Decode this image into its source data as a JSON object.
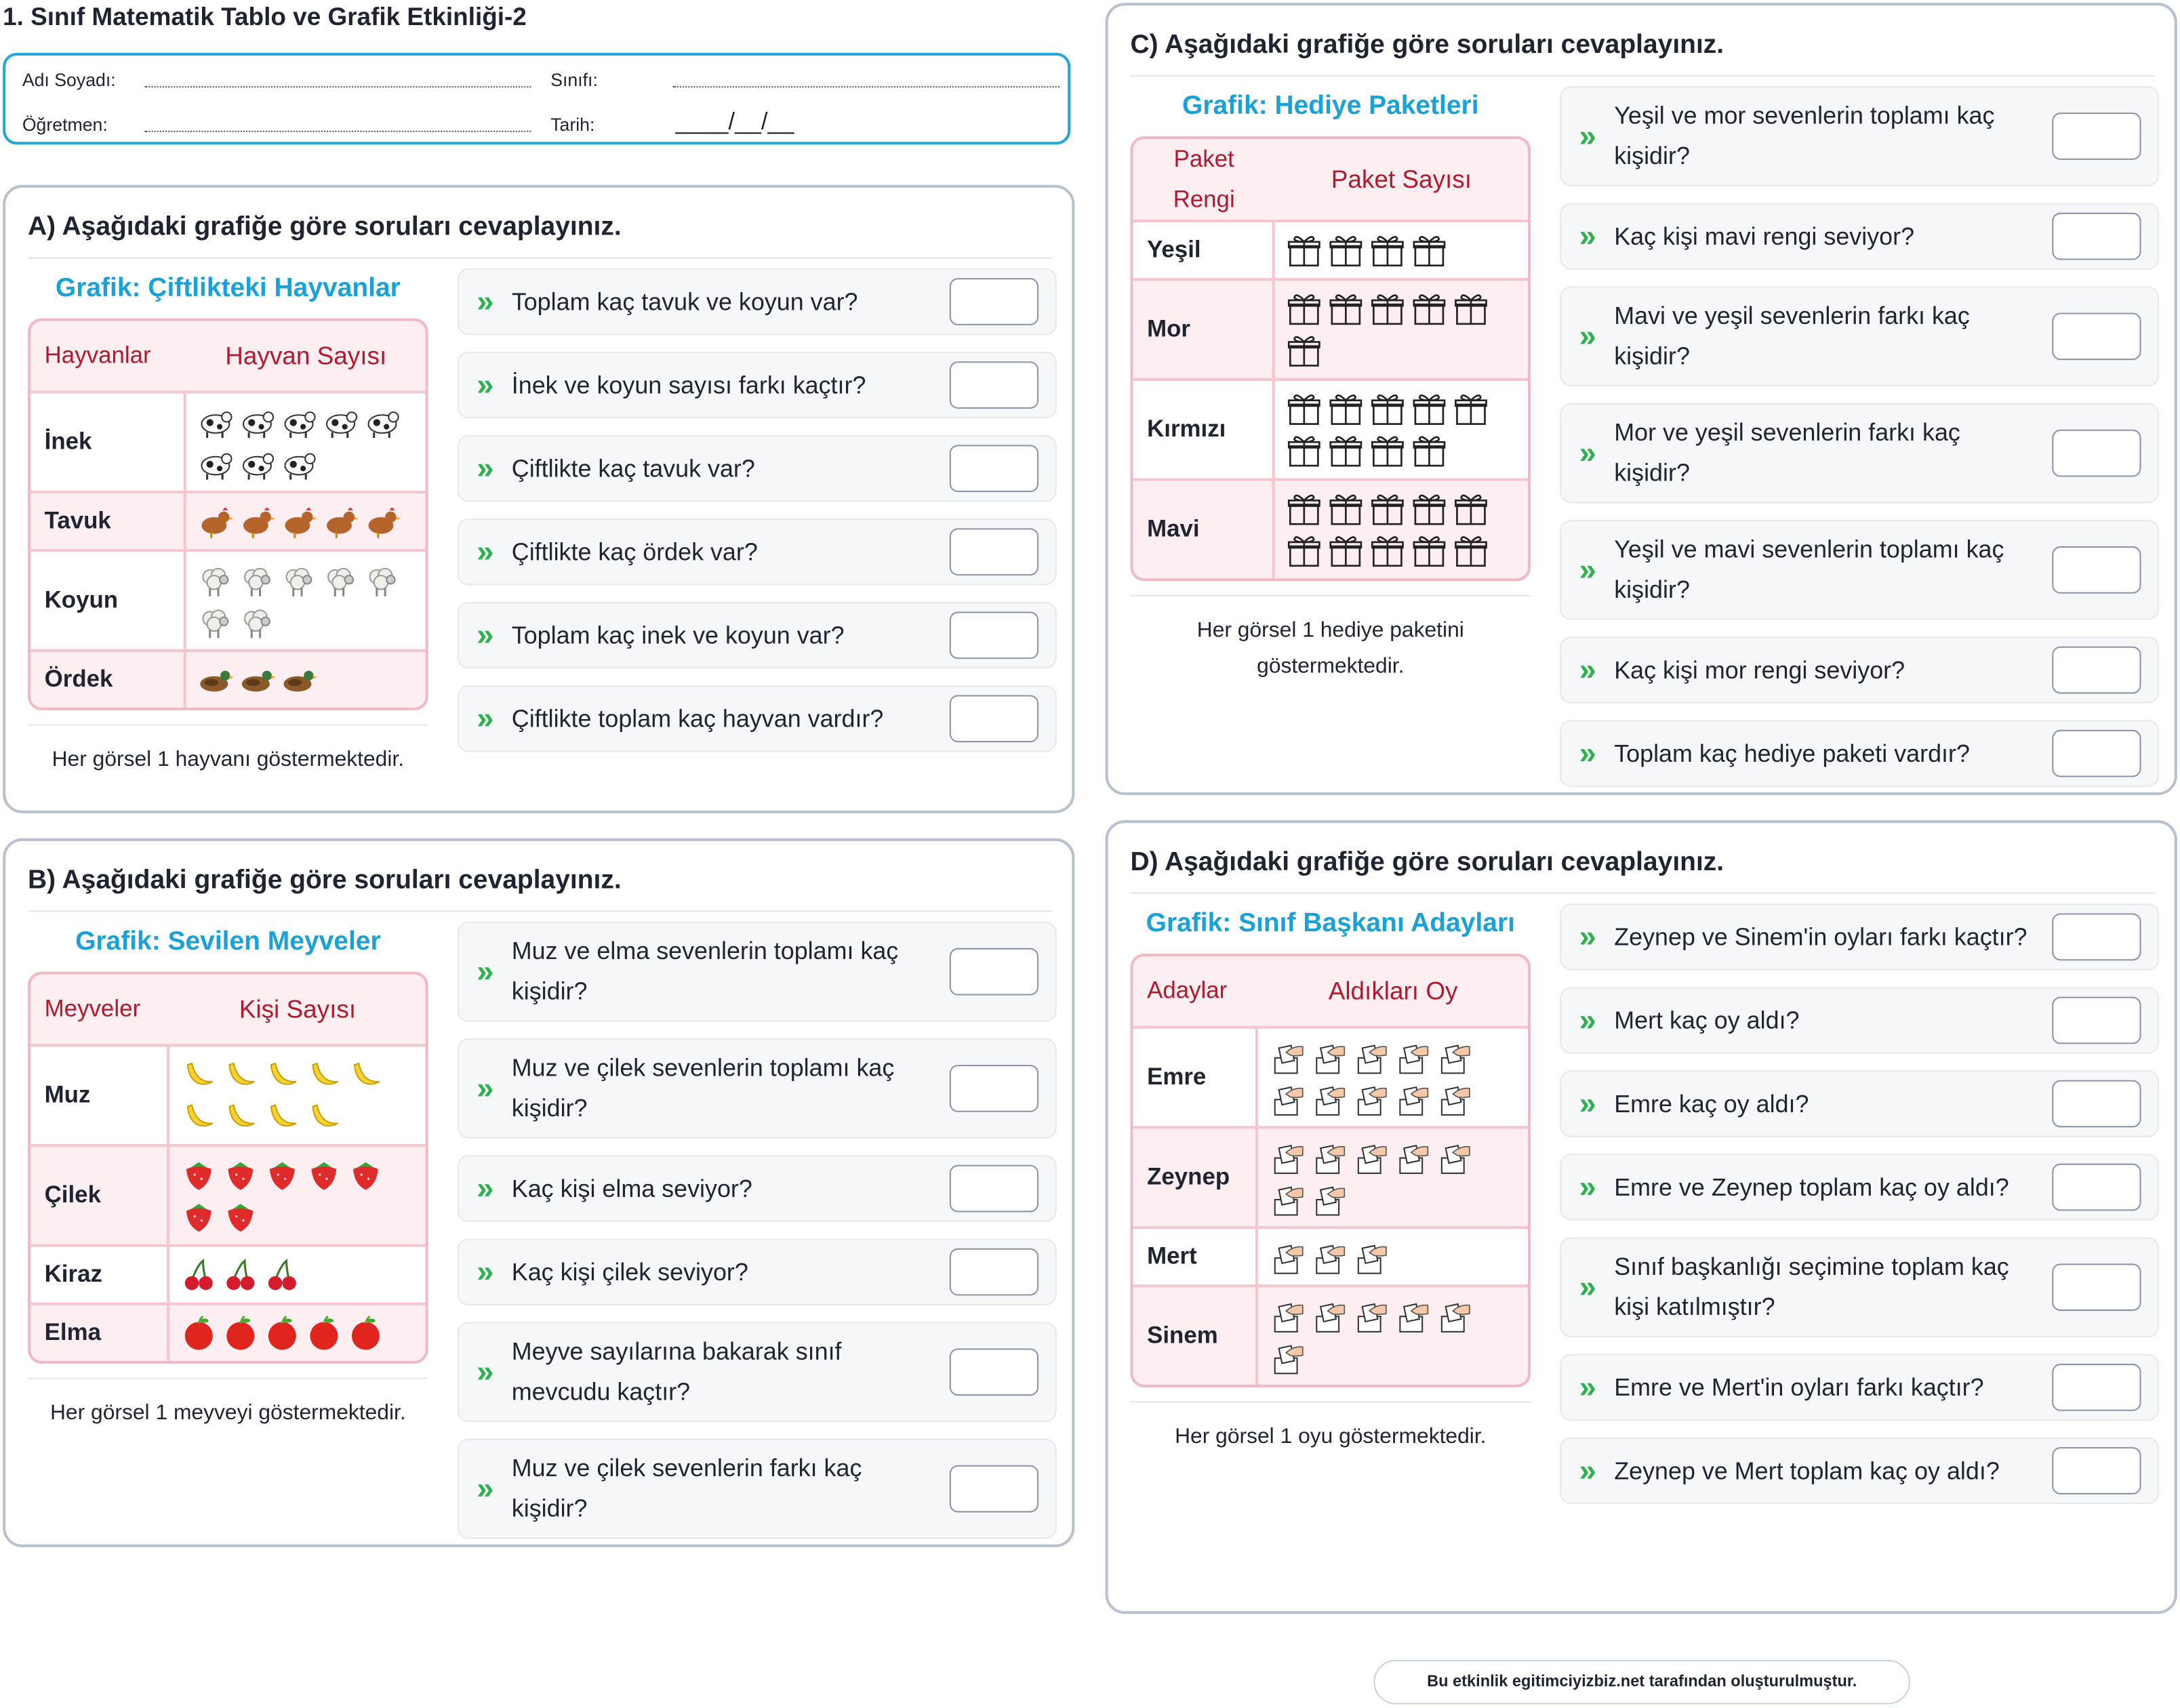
{
  "title": "1. Sınıf Matematik Tablo ve Grafik Etkinliği-2",
  "info": {
    "name": "Adı Soyadı:",
    "class": "Sınıfı:",
    "teacher": "Öğretmen:",
    "date": "Tarih:",
    "date_blank": "____/__/__"
  },
  "sections": [
    {
      "heading": "A) Aşağıdaki grafiğe göre soruları cevaplayınız.",
      "chart_title": "Grafik: Çiftlikteki Hayvanlar",
      "columns": [
        "Hayvanlar",
        "Hayvan Sayısı"
      ],
      "rows": [
        {
          "label": "İnek",
          "count": 8,
          "icon": "cow"
        },
        {
          "label": "Tavuk",
          "count": 5,
          "icon": "chicken"
        },
        {
          "label": "Koyun",
          "count": 7,
          "icon": "sheep"
        },
        {
          "label": "Ördek",
          "count": 3,
          "icon": "duck"
        }
      ],
      "note": "Her görsel 1 hayvanı göstermektedir.",
      "questions": [
        "Toplam kaç tavuk ve koyun var?",
        "İnek ve koyun sayısı farkı kaçtır?",
        "Çiftlikte kaç tavuk var?",
        "Çiftlikte kaç ördek var?",
        "Toplam kaç inek ve koyun var?",
        "Çiftlikte toplam kaç hayvan vardır?"
      ]
    },
    {
      "heading": "B) Aşağıdaki grafiğe göre soruları cevaplayınız.",
      "chart_title": "Grafik: Sevilen Meyveler",
      "columns": [
        "Meyveler",
        "Kişi Sayısı"
      ],
      "rows": [
        {
          "label": "Muz",
          "count": 9,
          "icon": "banana"
        },
        {
          "label": "Çilek",
          "count": 7,
          "icon": "strawberry"
        },
        {
          "label": "Kiraz",
          "count": 3,
          "icon": "cherry"
        },
        {
          "label": "Elma",
          "count": 5,
          "icon": "apple"
        }
      ],
      "note": "Her görsel 1 meyveyi göstermektedir.",
      "questions": [
        "Muz ve elma sevenlerin toplamı kaç kişidir?",
        "Muz ve çilek sevenlerin toplamı kaç kişidir?",
        "Kaç kişi elma seviyor?",
        "Kaç kişi çilek seviyor?",
        "Meyve sayılarına bakarak sınıf mevcudu kaçtır?",
        "Muz ve çilek sevenlerin farkı kaç kişidir?"
      ]
    },
    {
      "heading": "C) Aşağıdaki grafiğe göre soruları cevaplayınız.",
      "chart_title": "Grafik: Hediye Paketleri",
      "columns": [
        "Paket Rengi",
        "Paket Sayısı"
      ],
      "rows": [
        {
          "label": "Yeşil",
          "count": 4,
          "icon": "gift"
        },
        {
          "label": "Mor",
          "count": 6,
          "icon": "gift"
        },
        {
          "label": "Kırmızı",
          "count": 9,
          "icon": "gift"
        },
        {
          "label": "Mavi",
          "count": 10,
          "icon": "gift"
        }
      ],
      "note": "Her görsel 1 hediye paketini göstermektedir.",
      "questions": [
        "Yeşil ve mor sevenlerin toplamı kaç kişidir?",
        "Kaç kişi mavi rengi seviyor?",
        "Mavi ve yeşil sevenlerin farkı kaç kişidir?",
        "Mor ve yeşil sevenlerin farkı kaç kişidir?",
        "Yeşil ve mavi sevenlerin toplamı kaç kişidir?",
        "Kaç kişi mor rengi seviyor?",
        "Toplam kaç hediye paketi vardır?"
      ]
    },
    {
      "heading": "D) Aşağıdaki grafiğe göre soruları cevaplayınız.",
      "chart_title": "Grafik: Sınıf Başkanı Adayları",
      "columns": [
        "Adaylar",
        "Aldıkları Oy"
      ],
      "rows": [
        {
          "label": "Emre",
          "count": 10,
          "icon": "vote"
        },
        {
          "label": "Zeynep",
          "count": 7,
          "icon": "vote"
        },
        {
          "label": "Mert",
          "count": 3,
          "icon": "vote"
        },
        {
          "label": "Sinem",
          "count": 6,
          "icon": "vote"
        }
      ],
      "note": "Her görsel 1 oyu göstermektedir.",
      "questions": [
        "Zeynep ve Sinem'in oyları farkı kaçtır?",
        "Mert kaç oy aldı?",
        "Emre kaç oy aldı?",
        "Emre ve Zeynep toplam kaç oy aldı?",
        "Sınıf başkanlığı seçimine toplam kaç kişi katılmıştır?",
        "Emre ve Mert'in oyları farkı kaçtır?",
        "Zeynep ve Mert toplam kaç oy aldı?"
      ]
    }
  ],
  "footer": "Bu etkinlik egitimciyizbiz.net tarafından oluşturulmuştur."
}
